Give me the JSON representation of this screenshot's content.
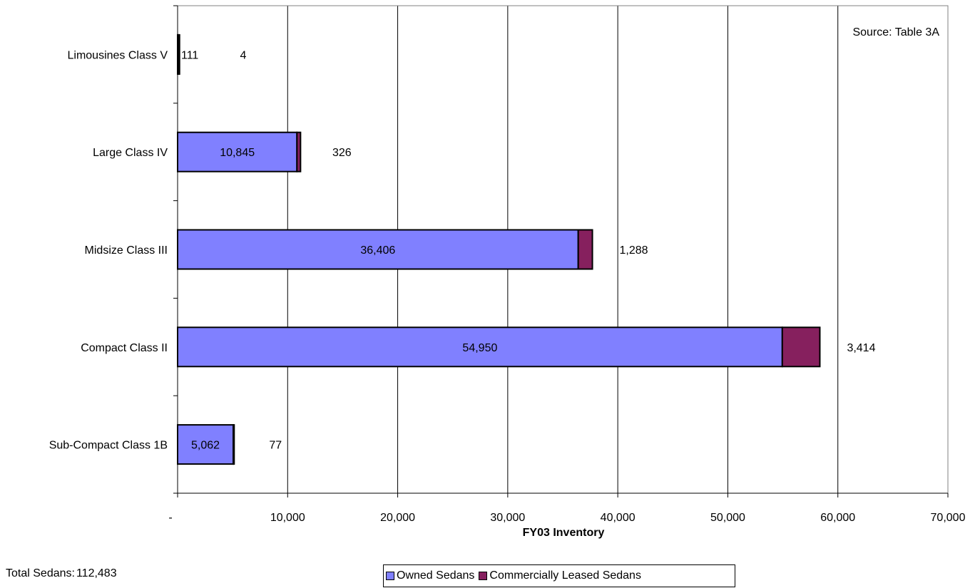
{
  "chart_data": {
    "type": "bar",
    "orientation": "horizontal",
    "stacked": true,
    "categories": [
      "Sub-Compact Class 1B",
      "Compact Class II",
      "Midsize Class III",
      "Large Class IV",
      "Limousines Class V"
    ],
    "series": [
      {
        "name": "Owned Sedans",
        "color": "#8080ff",
        "values": [
          5062,
          54950,
          36406,
          10845,
          111
        ],
        "labels": [
          "5,062",
          "54,950",
          "36,406",
          "10,845",
          "111"
        ]
      },
      {
        "name": "Commercially Leased Sedans",
        "color": "#86205e",
        "values": [
          77,
          3414,
          1288,
          326,
          4
        ],
        "labels": [
          "77",
          "3,414",
          "1,288",
          "326",
          "4"
        ]
      }
    ],
    "xlabel": "FY03 Inventory",
    "ylabel": "",
    "xlim": [
      0,
      70000
    ],
    "xticks": [
      0,
      10000,
      20000,
      30000,
      40000,
      50000,
      60000,
      70000
    ],
    "xtick_labels": [
      "-",
      "10,000",
      "20,000",
      "30,000",
      "40,000",
      "50,000",
      "60,000",
      "70,000"
    ],
    "grid": "vertical",
    "legend_position": "bottom",
    "annotation": "Source: Table 3A"
  },
  "footer": {
    "total_label": "Total Sedans:",
    "total_value": "112,483"
  }
}
